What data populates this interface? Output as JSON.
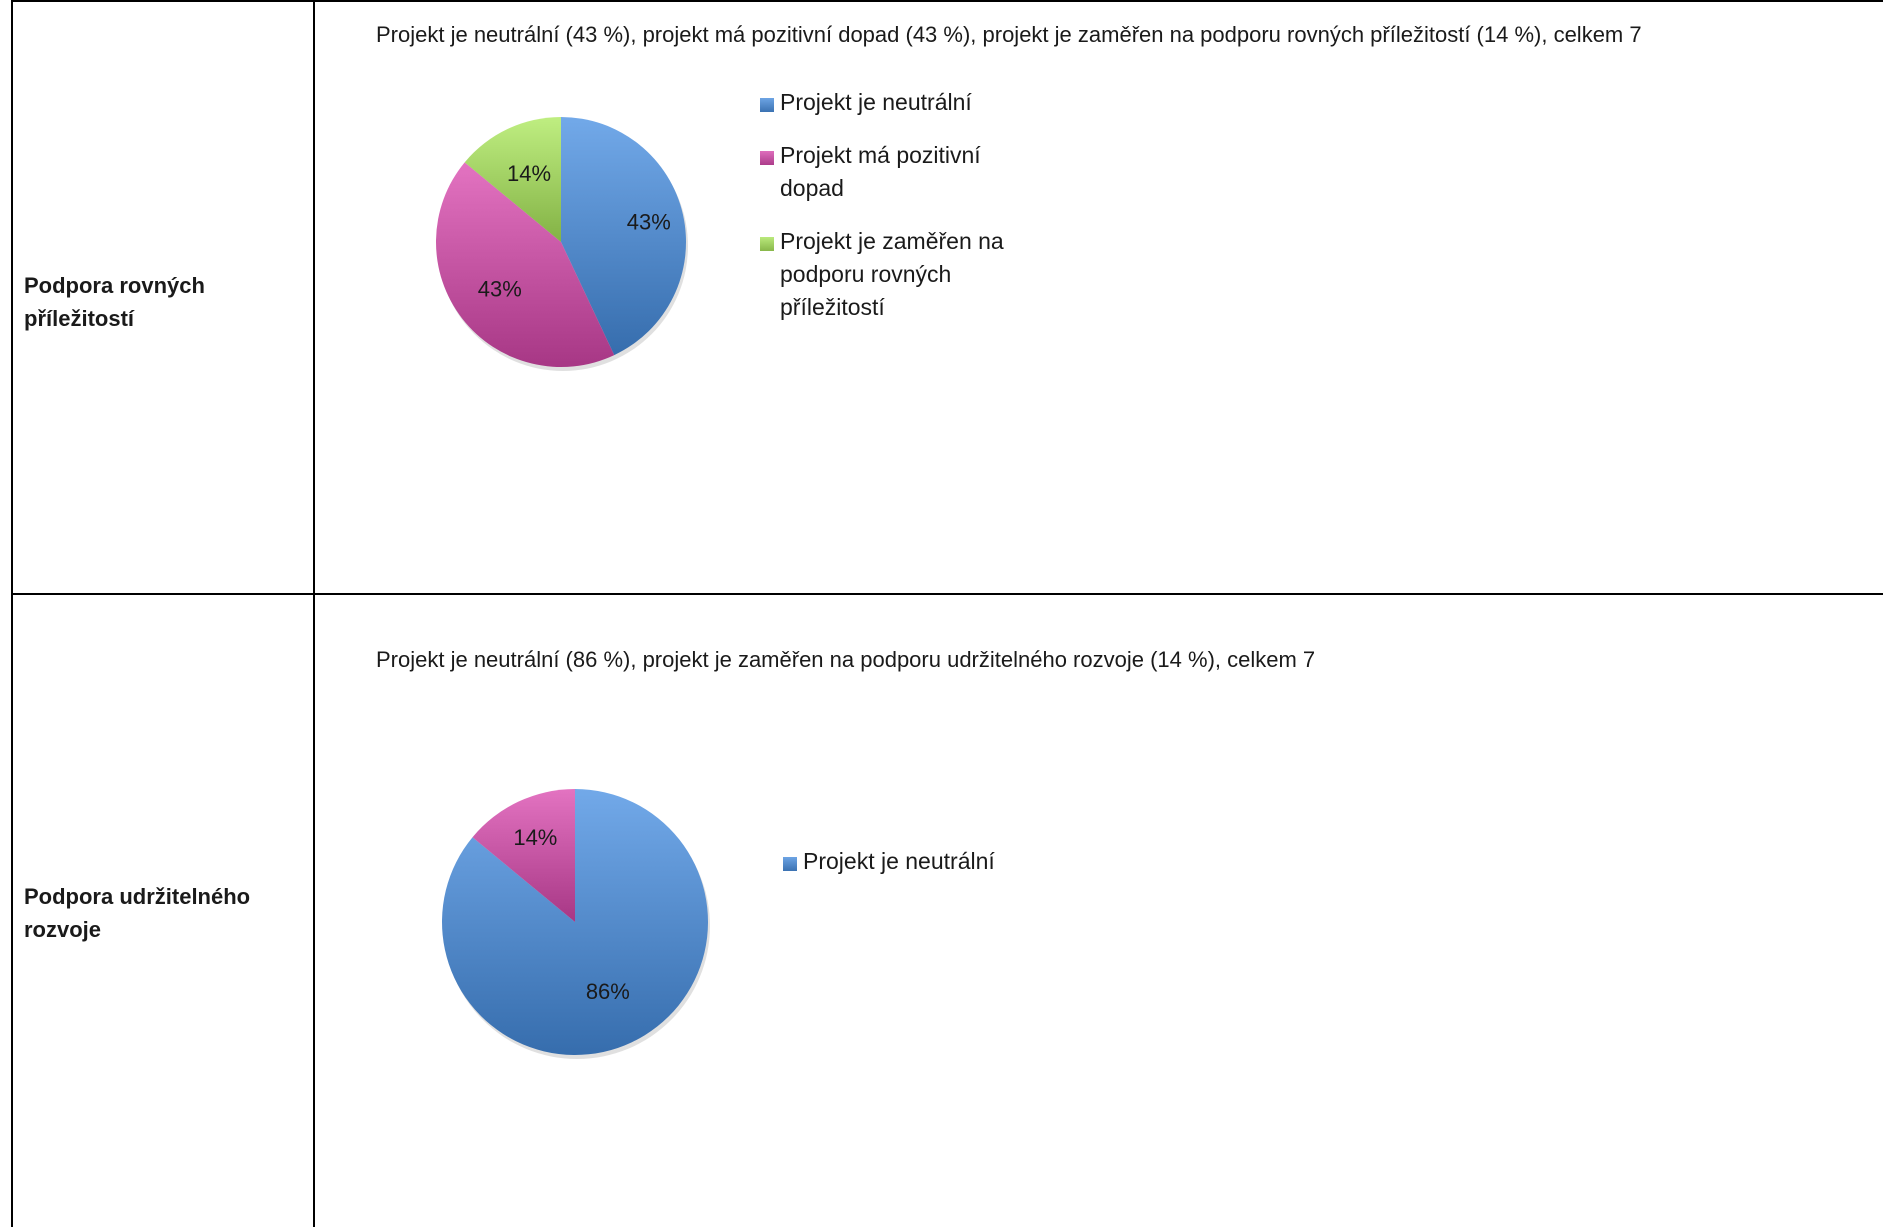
{
  "table": {
    "rows": [
      {
        "label": "Podpora rovných\npříležitostí"
      },
      {
        "label": "Podpora udržitelného\nrozvoje"
      }
    ]
  },
  "chart_data": [
    {
      "type": "pie",
      "title": "Projekt je neutrální (43 %), projekt má pozitivní dopad (43 %), projekt je zaměřen na podporu rovných příležitostí (14 %), celkem 7",
      "categories": [
        "Projekt je neutrální",
        "Projekt má pozitivní dopad",
        "Projekt je zaměřen na podporu rovných příležitostí"
      ],
      "values": [
        43,
        43,
        14
      ],
      "data_labels": [
        "43%",
        "43%",
        "14%"
      ],
      "colors": [
        "#4f86c6",
        "#c0509e",
        "#9ccb5e"
      ],
      "legend": [
        "Projekt je neutrální",
        "Projekt má pozitivní\ndopad",
        "Projekt je zaměřen na\npodporu rovných\npříležitostí"
      ],
      "legend_position": "right"
    },
    {
      "type": "pie",
      "title": "Projekt je neutrální (86 %), projekt je zaměřen na podporu udržitelného rozvoje (14 %), celkem 7",
      "categories": [
        "Projekt je neutrální",
        "Projekt je zaměřen na podporu udržitelného rozvoje"
      ],
      "values": [
        86,
        14
      ],
      "data_labels": [
        "86%",
        "14%"
      ],
      "colors": [
        "#4f86c6",
        "#c0509e"
      ],
      "legend": [
        "Projekt je neutrální"
      ],
      "legend_position": "right"
    }
  ]
}
